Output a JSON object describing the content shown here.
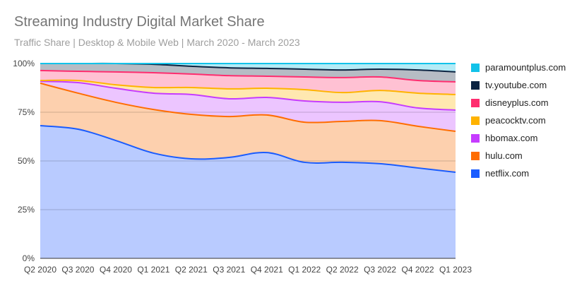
{
  "chart_data": {
    "type": "area",
    "stacked": true,
    "title": "Streaming Industry Digital Market Share",
    "subtitle": "Traffic Share | Desktop & Mobile Web | March 2020 - March 2023",
    "categories": [
      "Q2 2020",
      "Q3 2020",
      "Q4 2020",
      "Q1 2021",
      "Q2 2021",
      "Q3 2021",
      "Q4 2021",
      "Q1 2022",
      "Q2 2022",
      "Q3 2022",
      "Q4 2022",
      "Q1 2023"
    ],
    "ylim": [
      0,
      100
    ],
    "yticks": [
      "0%",
      "25%",
      "50%",
      "75%",
      "100%"
    ],
    "grid": true,
    "legend_position": "right",
    "series": [
      {
        "name": "netflix.com",
        "color": "#1a5cff",
        "fill": "#b9cbff",
        "values": [
          68.1,
          66.3,
          60.5,
          54.0,
          51.1,
          51.8,
          54.3,
          49.3,
          49.3,
          48.6,
          46.4,
          44.2
        ]
      },
      {
        "name": "hulu.com",
        "color": "#ff6d00",
        "fill": "#fdd0ae",
        "values": [
          21.8,
          18.5,
          19.6,
          22.4,
          22.8,
          21.0,
          19.3,
          20.6,
          21.0,
          22.1,
          21.4,
          21.0
        ]
      },
      {
        "name": "hbomax.com",
        "color": "#c63cff",
        "fill": "#ecc5ff",
        "values": [
          1.0,
          5.4,
          7.2,
          8.4,
          10.2,
          9.1,
          9.0,
          10.9,
          9.8,
          9.7,
          9.4,
          10.9
        ]
      },
      {
        "name": "peacocktv.com",
        "color": "#ffb300",
        "fill": "#ffe8b0",
        "values": [
          0.4,
          1.1,
          1.8,
          2.9,
          3.6,
          5.1,
          4.7,
          5.8,
          5.0,
          5.8,
          7.6,
          8.0
        ]
      },
      {
        "name": "disneyplus.com",
        "color": "#ff2d6f",
        "fill": "#ffc1d3",
        "values": [
          5.1,
          4.7,
          6.6,
          7.6,
          6.9,
          6.8,
          6.2,
          6.5,
          7.7,
          6.9,
          6.5,
          6.5
        ]
      },
      {
        "name": "tv.youtube.com",
        "color": "#0b2341",
        "fill": "#b6bcc4",
        "values": [
          3.6,
          4.0,
          4.3,
          4.3,
          4.0,
          4.0,
          4.0,
          4.0,
          3.9,
          4.0,
          5.4,
          5.1
        ]
      },
      {
        "name": "paramountplus.com",
        "color": "#12c2e9",
        "fill": "#b3ebf6",
        "values": [
          0,
          0,
          0,
          0.4,
          1.4,
          2.2,
          2.5,
          2.9,
          3.3,
          2.9,
          3.3,
          4.3
        ]
      }
    ]
  }
}
